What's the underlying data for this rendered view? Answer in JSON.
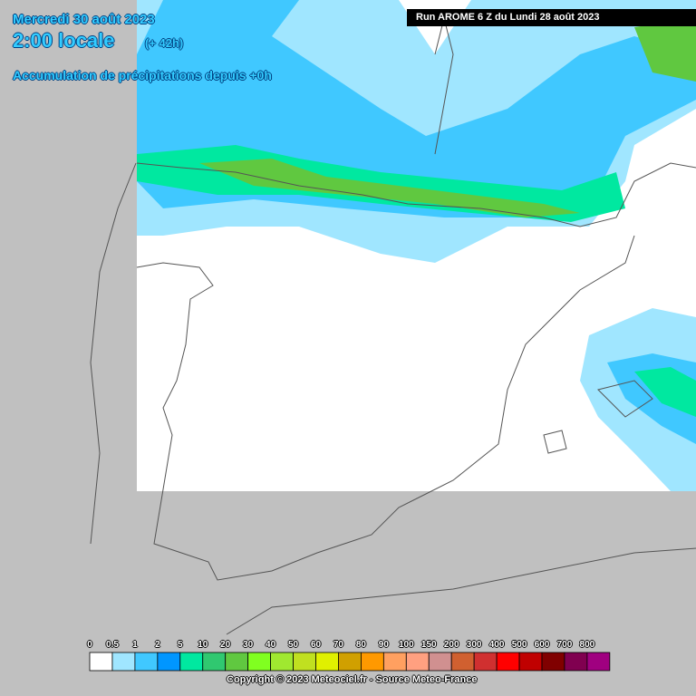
{
  "header": {
    "date": "Mercredi 30 août 2023",
    "time": "2:00 locale",
    "offset": "(+ 42h)",
    "subtitle": "Accumulation de précipitations depuis +0h",
    "run": "Run AROME 6 Z du Lundi 28 août 2023"
  },
  "legend": {
    "items": [
      {
        "label": "0",
        "color": "#ffffff"
      },
      {
        "label": "0.5",
        "color": "#a0e6ff"
      },
      {
        "label": "1",
        "color": "#40c8ff"
      },
      {
        "label": "2",
        "color": "#0096ff"
      },
      {
        "label": "5",
        "color": "#00e8a0"
      },
      {
        "label": "10",
        "color": "#30c870"
      },
      {
        "label": "20",
        "color": "#60c840"
      },
      {
        "label": "30",
        "color": "#80ff20"
      },
      {
        "label": "40",
        "color": "#a0e830"
      },
      {
        "label": "50",
        "color": "#c0e020"
      },
      {
        "label": "60",
        "color": "#e0f000"
      },
      {
        "label": "70",
        "color": "#d0a000"
      },
      {
        "label": "80",
        "color": "#ff9900"
      },
      {
        "label": "90",
        "color": "#ffa060"
      },
      {
        "label": "100",
        "color": "#ffa080"
      },
      {
        "label": "150",
        "color": "#d09090"
      },
      {
        "label": "200",
        "color": "#d06030"
      },
      {
        "label": "300",
        "color": "#d03030"
      },
      {
        "label": "400",
        "color": "#ff0000"
      },
      {
        "label": "500",
        "color": "#c00000"
      },
      {
        "label": "600",
        "color": "#800000"
      },
      {
        "label": "700",
        "color": "#800050"
      },
      {
        "label": "800",
        "color": "#a00080"
      }
    ]
  },
  "footer": {
    "copyright": "Copyright © 2023 Meteociel.fr - Source Meteo-France"
  }
}
